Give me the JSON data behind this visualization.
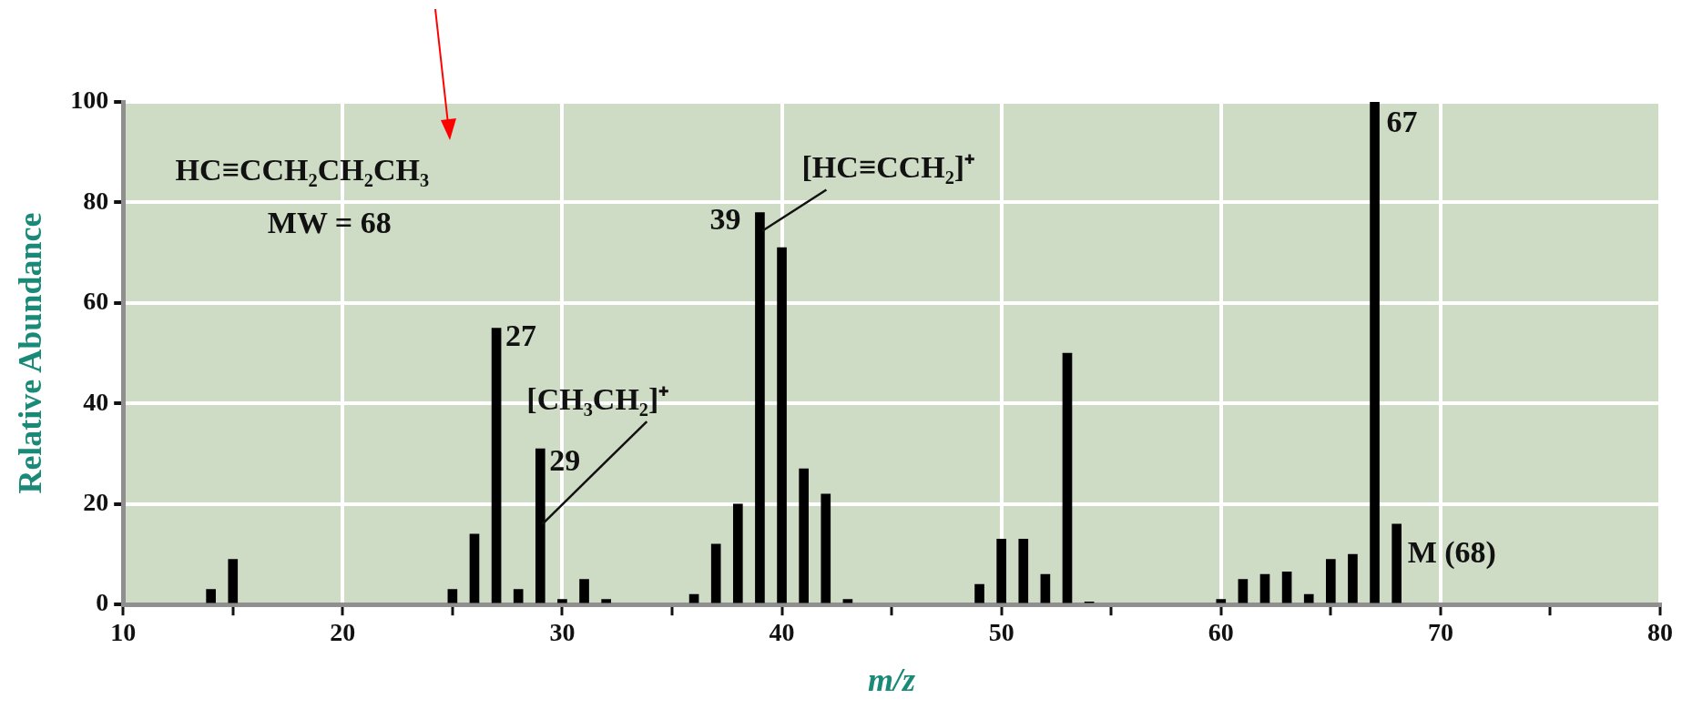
{
  "chart_data": {
    "type": "bar",
    "xlabel": "m/z",
    "ylabel": "Relative Abundance",
    "x": [
      14,
      15,
      25,
      26,
      27,
      28,
      29,
      30,
      31,
      32,
      36,
      37,
      38,
      39,
      40,
      41,
      42,
      43,
      49,
      50,
      51,
      52,
      53,
      54,
      60,
      61,
      62,
      63,
      64,
      65,
      66,
      67,
      68
    ],
    "values": [
      3,
      9,
      3,
      14,
      55,
      3,
      31,
      1,
      5,
      1,
      2,
      12,
      20,
      78,
      71,
      27,
      22,
      1,
      4,
      13,
      13,
      6,
      50,
      0.5,
      1,
      5,
      6,
      6.5,
      2,
      9,
      10,
      100,
      16
    ],
    "color": "#000000",
    "xlim": [
      10,
      80
    ],
    "xticks": [
      10,
      {
        "value": 15,
        "label": null
      },
      20,
      {
        "value": 25,
        "label": null
      },
      30,
      {
        "value": 35,
        "label": null
      },
      40,
      {
        "value": 45,
        "label": null
      },
      50,
      {
        "value": 55,
        "label": null
      },
      60,
      {
        "value": 65,
        "label": null
      },
      70,
      {
        "value": 75,
        "label": null
      },
      80
    ],
    "ylim": [
      0,
      100
    ],
    "yticks": [
      0,
      20,
      40,
      60,
      80,
      100
    ],
    "grid": true,
    "legend": false,
    "annotations": [
      "HC≡CCH₂CH₂CH₃",
      "MW = 68",
      {
        "text": "27",
        "x": 27,
        "y": 55
      },
      {
        "text": "29",
        "x": 29,
        "y": 31
      },
      {
        "text": "[CH₃CH₂]⁺",
        "x": 29,
        "y": 31
      },
      {
        "text": "39",
        "x": 39,
        "y": 78
      },
      {
        "text": "[HC≡CCH₂]⁺",
        "x": 39,
        "y": 78
      },
      {
        "text": "67",
        "x": 67,
        "y": 100
      },
      {
        "text": "M (68)",
        "x": 68,
        "y": 16
      }
    ]
  }
}
